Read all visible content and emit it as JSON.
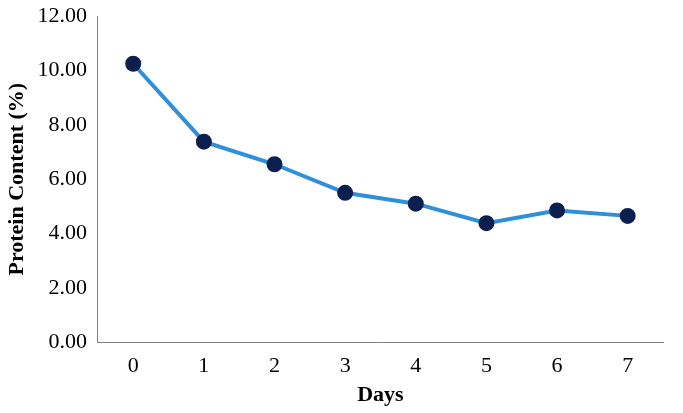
{
  "chart_data": {
    "type": "line",
    "x_label": "Days",
    "y_label": "Protein Content (%)",
    "categories": [
      "0",
      "1",
      "2",
      "3",
      "4",
      "5",
      "6",
      "7"
    ],
    "values": [
      10.25,
      7.38,
      6.55,
      5.5,
      5.1,
      4.38,
      4.85,
      4.65
    ],
    "errors": [
      0.08,
      0.08,
      0.06,
      0.06,
      0.2,
      0.06,
      0.08,
      0.06
    ],
    "color": "#2f8fd8",
    "marker": "circle",
    "ylim": [
      0,
      12
    ],
    "yticks": [
      {
        "value": 0,
        "label": "0.00"
      },
      {
        "value": 2,
        "label": "2.00"
      },
      {
        "value": 4,
        "label": "4.00"
      },
      {
        "value": 6,
        "label": "6.00"
      },
      {
        "value": 8,
        "label": "8.00"
      },
      {
        "value": 10,
        "label": "10.00"
      },
      {
        "value": 12,
        "label": "12.00"
      }
    ],
    "grid": false
  }
}
